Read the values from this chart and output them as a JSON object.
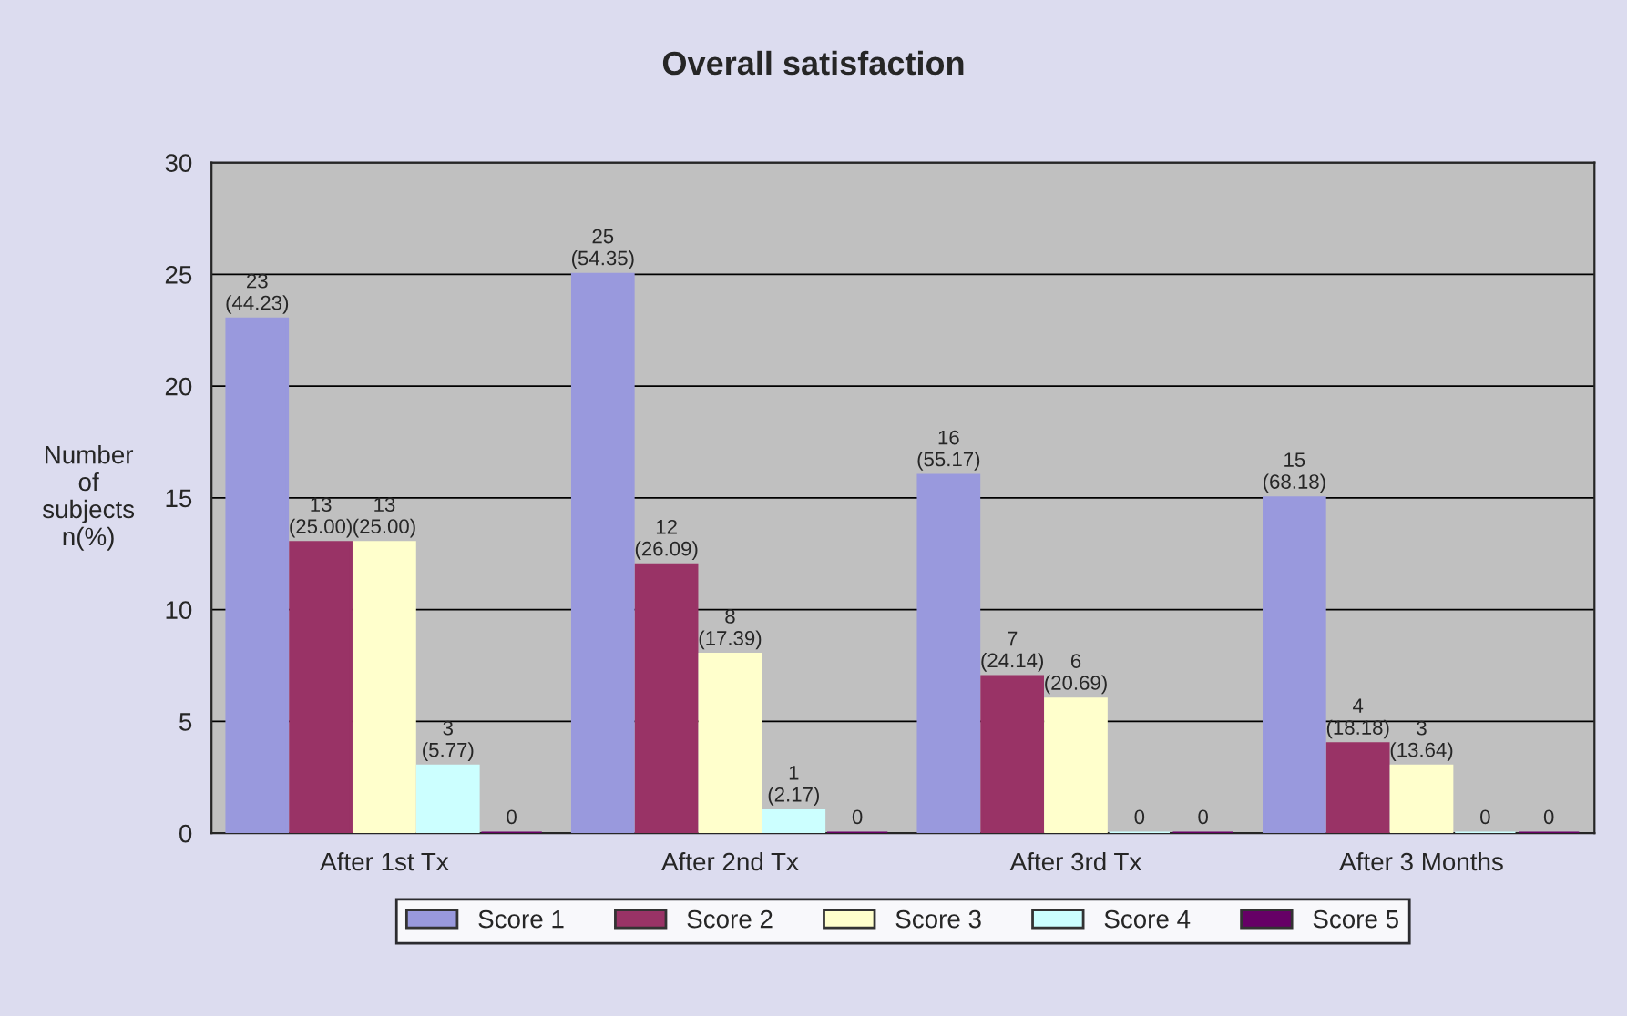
{
  "chart_data": {
    "type": "bar",
    "title": "Overall satisfaction",
    "ylabel": "Number\nof\nsubjects\nn(%)",
    "categories": [
      "After 1st Tx",
      "After 2nd Tx",
      "After 3rd Tx",
      "After 3 Months"
    ],
    "series": [
      {
        "name": "Score 1",
        "color": "#9999dd",
        "values": [
          23,
          25,
          16,
          15
        ],
        "value_labels": [
          "23\n(44.23)",
          "25\n(54.35)",
          "16\n(55.17)",
          "15\n(68.18)"
        ]
      },
      {
        "name": "Score 2",
        "color": "#993366",
        "values": [
          13,
          12,
          7,
          4
        ],
        "value_labels": [
          "13\n(25.00)",
          "12\n(26.09)",
          "7\n(24.14)",
          "4\n(18.18)"
        ]
      },
      {
        "name": "Score 3",
        "color": "#ffffcc",
        "values": [
          13,
          8,
          6,
          3
        ],
        "value_labels": [
          "13\n(25.00)",
          "8\n(17.39)",
          "6\n(20.69)",
          "3\n(13.64)"
        ]
      },
      {
        "name": "Score 4",
        "color": "#ccffff",
        "values": [
          3,
          1,
          0,
          0
        ],
        "value_labels": [
          "3\n(5.77)",
          "1\n(2.17)",
          "0",
          "0"
        ]
      },
      {
        "name": "Score 5",
        "color": "#660066",
        "values": [
          0,
          0,
          0,
          0
        ],
        "value_labels": [
          "0",
          "0",
          "0",
          "0"
        ]
      }
    ],
    "ylim": [
      0,
      30
    ],
    "yticks": [
      0,
      5,
      10,
      15,
      20,
      25,
      30
    ],
    "grid": "y",
    "legend": "bottom"
  }
}
